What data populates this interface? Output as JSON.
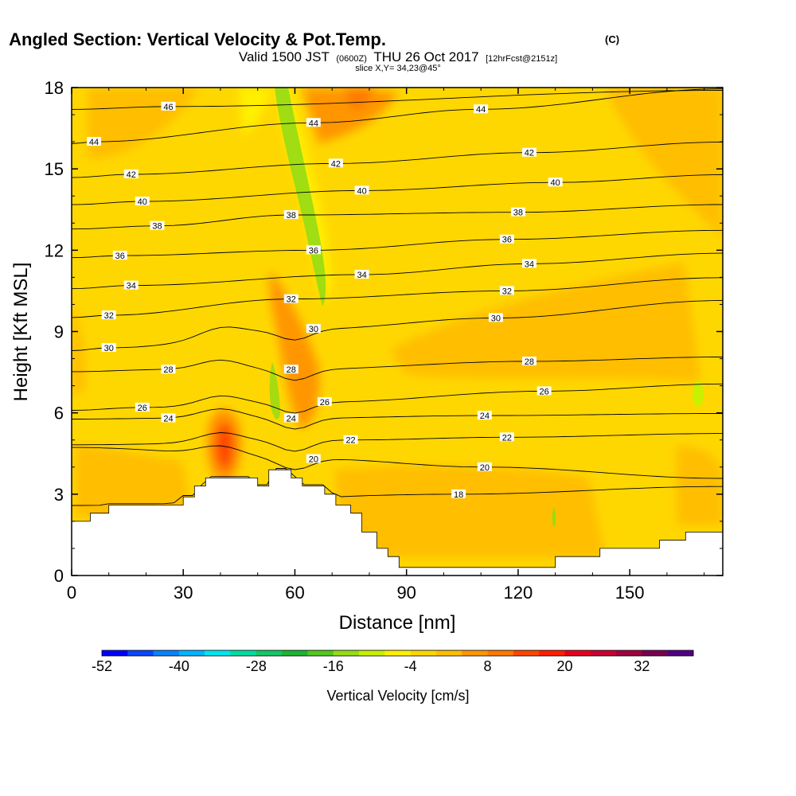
{
  "header": {
    "title": "Angled Section: Vertical Velocity & Pot.Temp.",
    "title_unit": "(C)",
    "valid_prefix": "Valid 1500 JST",
    "valid_utc": "(0600Z)",
    "valid_date": "THU 26 Oct 2017",
    "forecast": "[12hrFcst@2151z]",
    "slice": "slice X,Y= 34,23@45°"
  },
  "chart_data": {
    "type": "heatmap",
    "xlabel": "Distance [nm]",
    "ylabel": "Height [Kft MSL]",
    "xlim": [
      0,
      175
    ],
    "ylim": [
      0,
      18
    ],
    "x_ticks": [
      "0",
      "30",
      "60",
      "90",
      "120",
      "150"
    ],
    "x_tick_values": [
      0,
      30,
      60,
      90,
      120,
      150
    ],
    "y_ticks": [
      "0",
      "3",
      "6",
      "9",
      "12",
      "15",
      "18"
    ],
    "y_tick_values": [
      0,
      3,
      6,
      9,
      12,
      15,
      18
    ],
    "colorbar": {
      "title": "Vertical Velocity [cm/s]",
      "tick_labels": [
        "-52",
        "-40",
        "-28",
        "-16",
        "-4",
        "8",
        "20",
        "32"
      ],
      "tick_values": [
        -52,
        -40,
        -28,
        -16,
        -4,
        8,
        20,
        32
      ],
      "colors": [
        "#0000ff",
        "#0a46ff",
        "#0a82ff",
        "#00b4ff",
        "#00e6f0",
        "#00dca0",
        "#14c864",
        "#1eb432",
        "#50c81e",
        "#96dc14",
        "#c8f000",
        "#fff000",
        "#ffd700",
        "#ffbe00",
        "#ff9600",
        "#ff7800",
        "#ff4600",
        "#ff1e00",
        "#e6001e",
        "#c80032",
        "#a0003c",
        "#780050",
        "#500082"
      ]
    },
    "terrain": [
      [
        0,
        2.0
      ],
      [
        5,
        2.0
      ],
      [
        5,
        2.3
      ],
      [
        10,
        2.3
      ],
      [
        10,
        2.6
      ],
      [
        30,
        2.6
      ],
      [
        30,
        2.9
      ],
      [
        33,
        2.9
      ],
      [
        33,
        3.3
      ],
      [
        36,
        3.3
      ],
      [
        36,
        3.6
      ],
      [
        50,
        3.6
      ],
      [
        50,
        3.3
      ],
      [
        53,
        3.3
      ],
      [
        53,
        3.9
      ],
      [
        59,
        3.9
      ],
      [
        59,
        3.6
      ],
      [
        62,
        3.6
      ],
      [
        62,
        3.3
      ],
      [
        68,
        3.3
      ],
      [
        68,
        3.0
      ],
      [
        71,
        3.0
      ],
      [
        71,
        2.6
      ],
      [
        75,
        2.6
      ],
      [
        75,
        2.3
      ],
      [
        78,
        2.3
      ],
      [
        78,
        1.6
      ],
      [
        82,
        1.6
      ],
      [
        82,
        1.0
      ],
      [
        85,
        1.0
      ],
      [
        85,
        0.7
      ],
      [
        88,
        0.7
      ],
      [
        88,
        0.3
      ],
      [
        130,
        0.3
      ],
      [
        130,
        0.7
      ],
      [
        142,
        0.7
      ],
      [
        142,
        1.0
      ],
      [
        158,
        1.0
      ],
      [
        158,
        1.3
      ],
      [
        165,
        1.3
      ],
      [
        165,
        1.6
      ],
      [
        175,
        1.6
      ]
    ],
    "potential_temperature_contours": [
      {
        "level": 46,
        "label_points": [
          [
            26,
            17.3
          ]
        ]
      },
      {
        "level": 44,
        "label_points": [
          [
            6,
            16.0
          ],
          [
            65,
            16.7
          ],
          [
            110,
            17.2
          ]
        ]
      },
      {
        "level": 42,
        "label_points": [
          [
            16,
            14.8
          ],
          [
            71,
            15.2
          ],
          [
            123,
            15.6
          ]
        ]
      },
      {
        "level": 40,
        "label_points": [
          [
            19,
            13.8
          ],
          [
            78,
            14.2
          ],
          [
            130,
            14.5
          ]
        ]
      },
      {
        "level": 38,
        "label_points": [
          [
            23,
            12.9
          ],
          [
            59,
            13.3
          ],
          [
            120,
            13.4
          ]
        ]
      },
      {
        "level": 36,
        "label_points": [
          [
            13,
            11.8
          ],
          [
            65,
            12.0
          ],
          [
            117,
            12.4
          ]
        ]
      },
      {
        "level": 34,
        "label_points": [
          [
            16,
            10.7
          ],
          [
            78,
            11.1
          ],
          [
            123,
            11.5
          ]
        ]
      },
      {
        "level": 32,
        "label_points": [
          [
            10,
            9.6
          ],
          [
            59,
            10.2
          ],
          [
            117,
            10.5
          ]
        ]
      },
      {
        "level": 30,
        "label_points": [
          [
            10,
            8.4
          ],
          [
            65,
            9.1
          ],
          [
            114,
            9.5
          ]
        ]
      },
      {
        "level": 28,
        "label_points": [
          [
            26,
            7.6
          ],
          [
            59,
            7.6
          ],
          [
            123,
            7.9
          ]
        ]
      },
      {
        "level": 26,
        "label_points": [
          [
            19,
            6.2
          ],
          [
            68,
            6.4
          ],
          [
            127,
            6.8
          ]
        ]
      },
      {
        "level": 24,
        "label_points": [
          [
            26,
            5.8
          ],
          [
            59,
            5.8
          ],
          [
            111,
            5.9
          ]
        ]
      },
      {
        "level": 22,
        "label_points": [
          [
            75,
            5.0
          ],
          [
            117,
            5.1
          ]
        ]
      },
      {
        "level": 20,
        "label_points": [
          [
            65,
            4.3
          ],
          [
            111,
            4.0
          ]
        ]
      },
      {
        "level": 18,
        "label_points": [
          [
            104,
            3.0
          ]
        ]
      }
    ]
  }
}
